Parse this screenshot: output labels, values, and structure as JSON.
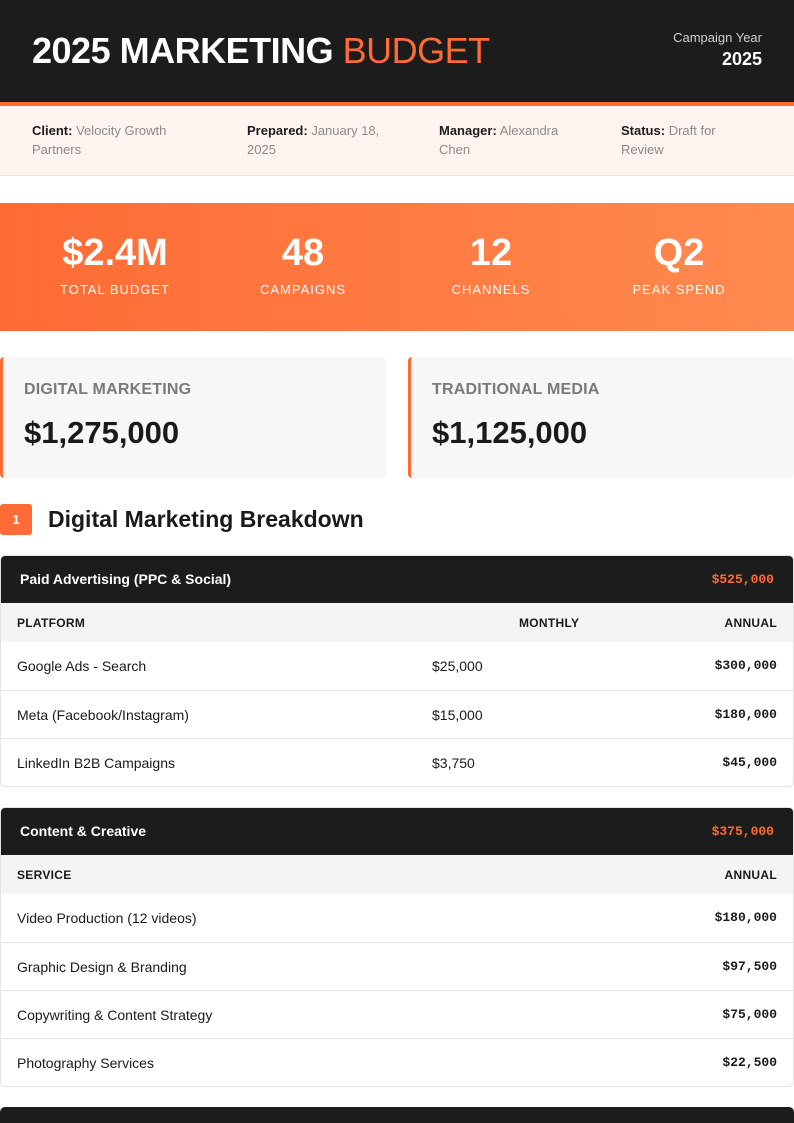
{
  "header": {
    "title_main": "2025 MARKETING ",
    "title_accent": "BUDGET",
    "year_label": "Campaign Year",
    "year": "2025"
  },
  "meta": {
    "client_label": "Client:",
    "client": "Velocity Growth Partners",
    "prepared_label": "Prepared:",
    "prepared": "January 18, 2025",
    "manager_label": "Manager:",
    "manager": "Alexandra Chen",
    "status_label": "Status:",
    "status": "Draft for Review"
  },
  "stats": [
    {
      "value": "$2.4M",
      "label": "TOTAL BUDGET"
    },
    {
      "value": "48",
      "label": "CAMPAIGNS"
    },
    {
      "value": "12",
      "label": "CHANNELS"
    },
    {
      "value": "Q2",
      "label": "PEAK SPEND"
    }
  ],
  "budgets": [
    {
      "label": "DIGITAL MARKETING",
      "value": "$1,275,000"
    },
    {
      "label": "TRADITIONAL MEDIA",
      "value": "$1,125,000"
    }
  ],
  "section": {
    "number": "1",
    "title": "Digital Marketing Breakdown"
  },
  "paid_ads": {
    "title": "Paid Advertising (PPC & Social)",
    "total": "$525,000",
    "col_platform": "PLATFORM",
    "col_monthly": "MONTHLY",
    "col_annual": "ANNUAL",
    "rows": [
      {
        "platform": "Google Ads - Search",
        "monthly": "$25,000",
        "annual": "$300,000"
      },
      {
        "platform": "Meta (Facebook/Instagram)",
        "monthly": "$15,000",
        "annual": "$180,000"
      },
      {
        "platform": "LinkedIn B2B Campaigns",
        "monthly": "$3,750",
        "annual": "$45,000"
      }
    ]
  },
  "content": {
    "title": "Content & Creative",
    "total": "$375,000",
    "col_service": "SERVICE",
    "col_annual": "ANNUAL",
    "rows": [
      {
        "service": "Video Production (12 videos)",
        "annual": "$180,000"
      },
      {
        "service": "Graphic Design & Branding",
        "annual": "$97,500"
      },
      {
        "service": "Copywriting & Content Strategy",
        "annual": "$75,000"
      },
      {
        "service": "Photography Services",
        "annual": "$22,500"
      }
    ]
  },
  "colors": {
    "accent": "#ff6b35",
    "dark": "#1c1c1c"
  }
}
